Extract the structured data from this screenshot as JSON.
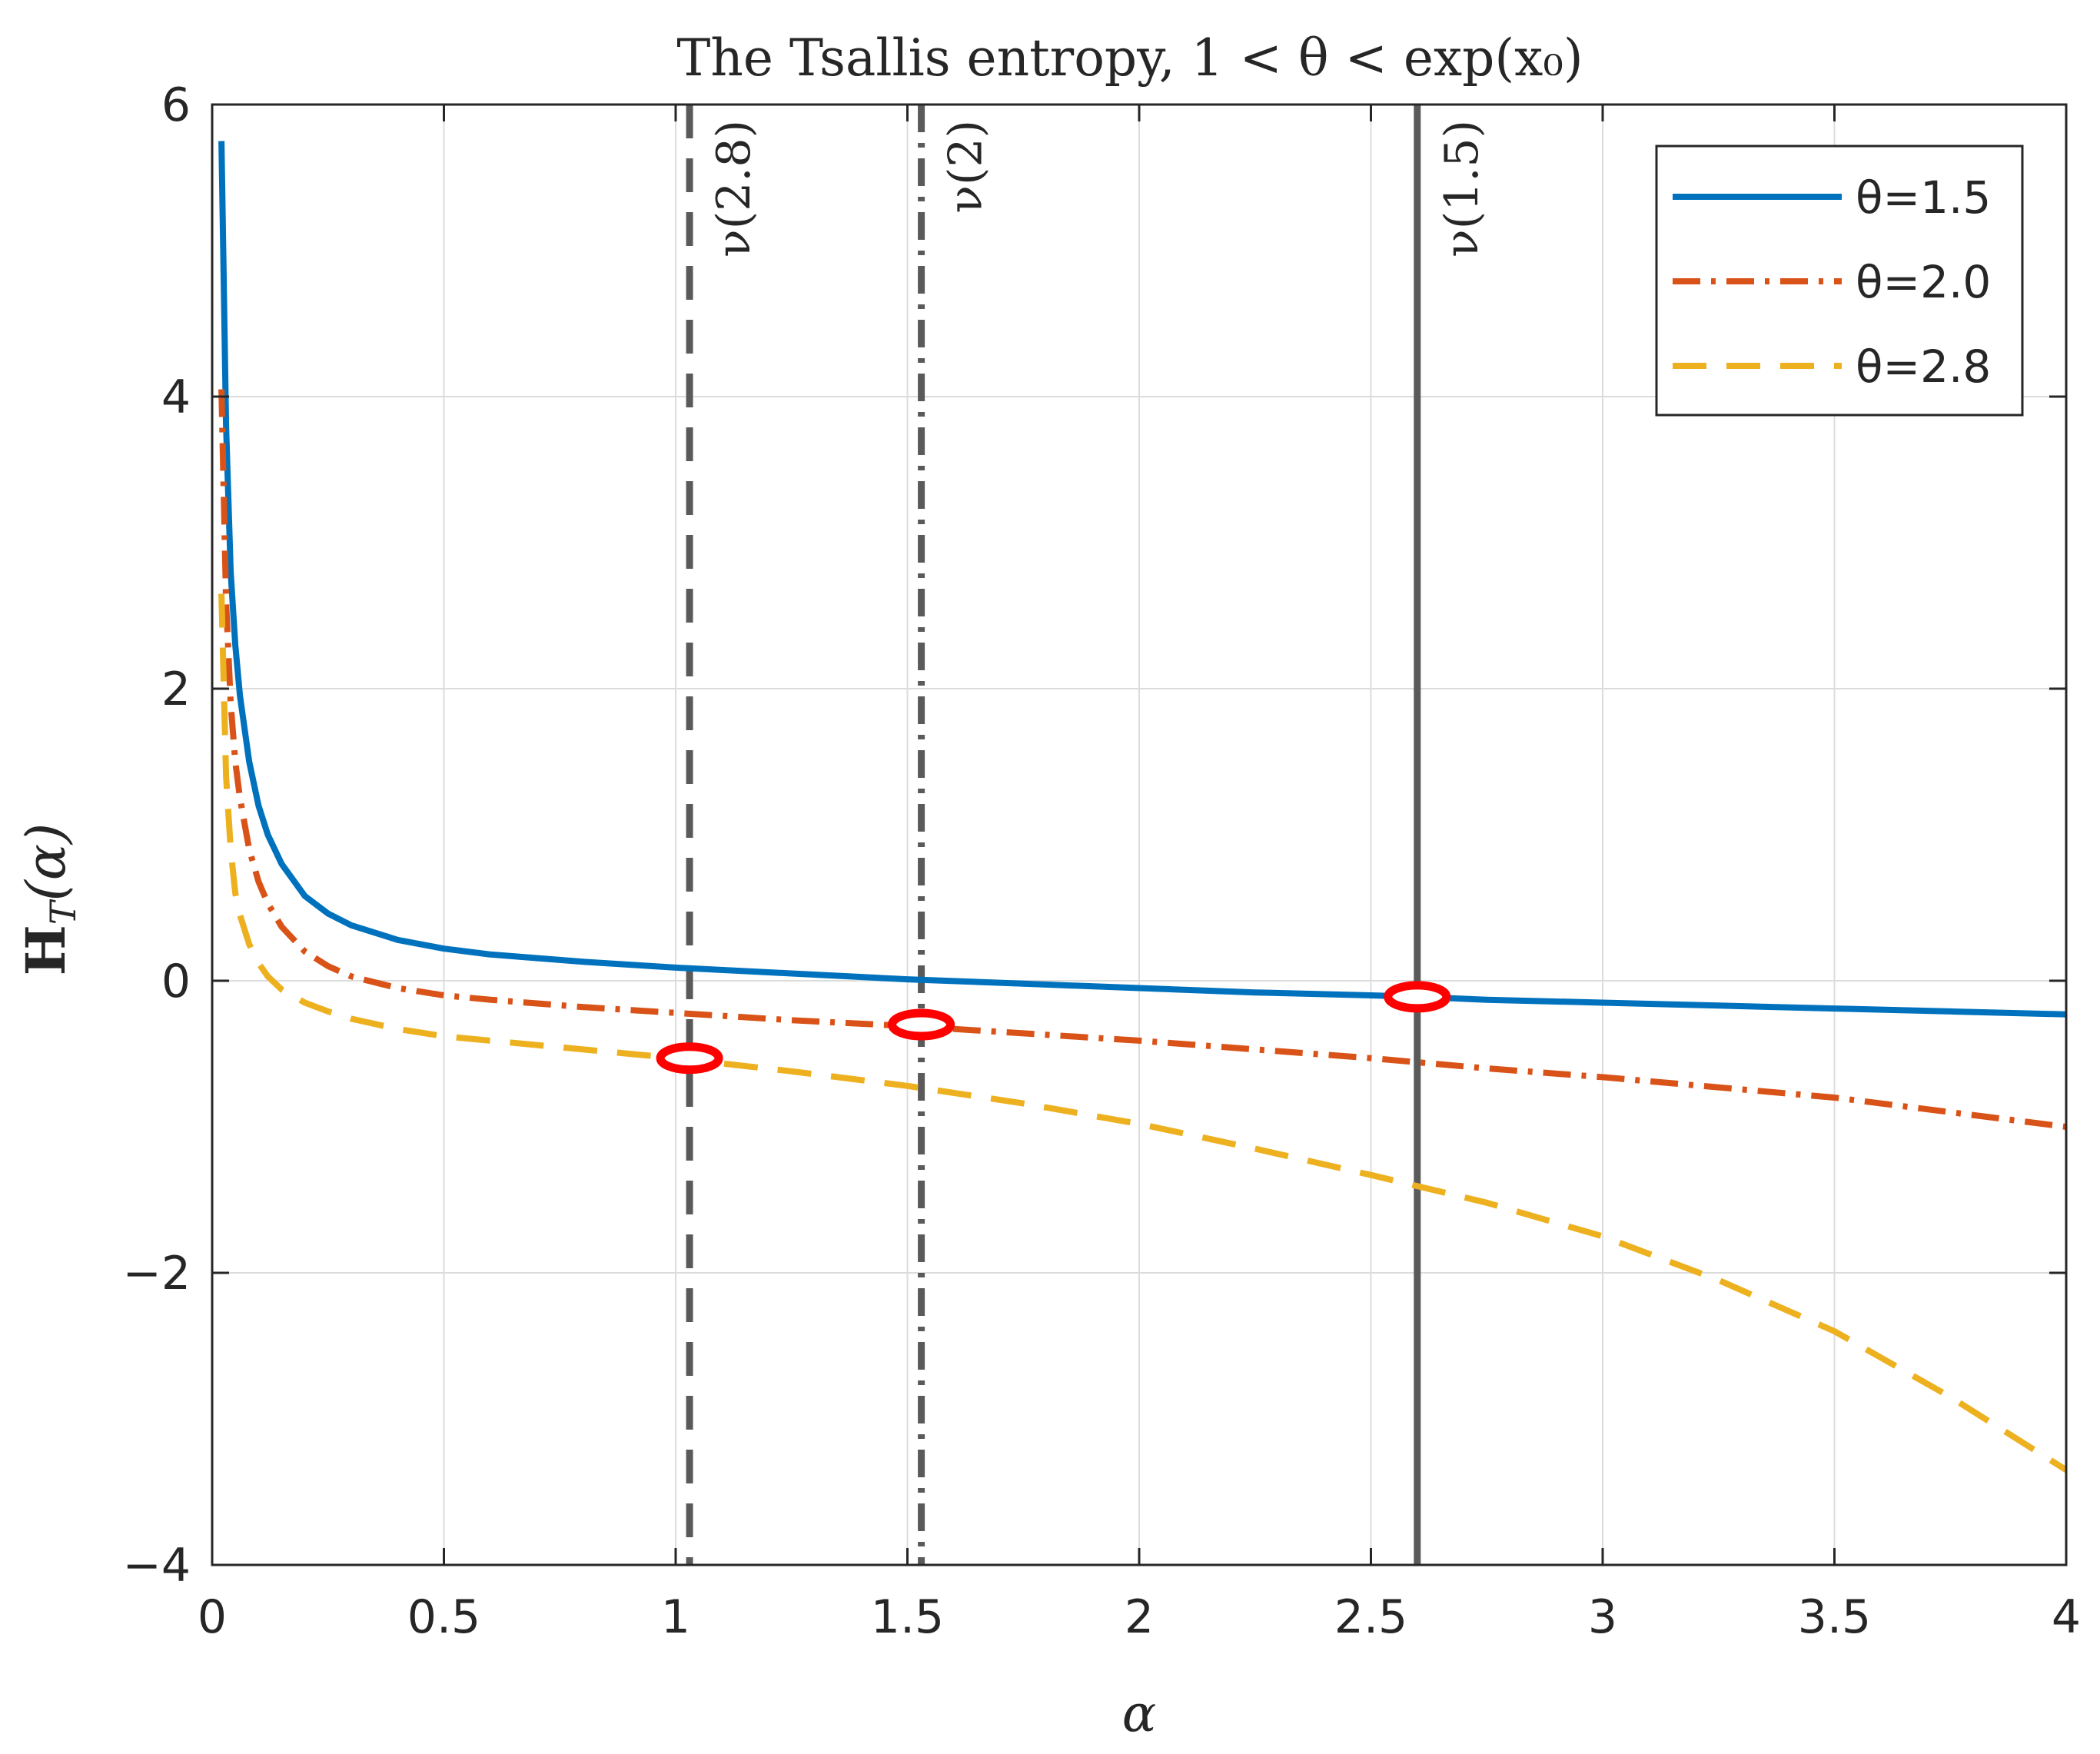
{
  "chart_data": {
    "type": "line",
    "title": "The Tsallis entropy, 1 < θ < exp(x₀)",
    "xlabel": "α",
    "ylabel": "H_T(α)",
    "ylabel_main": "H",
    "ylabel_sub": "T",
    "ylabel_arg": "(α)",
    "xlim": [
      0,
      4
    ],
    "ylim": [
      -4,
      6
    ],
    "xticks": [
      0,
      0.5,
      1,
      1.5,
      2,
      2.5,
      3,
      3.5,
      4
    ],
    "xtick_labels": [
      "0",
      "0.5",
      "1",
      "1.5",
      "2",
      "2.5",
      "3",
      "3.5",
      "4"
    ],
    "yticks": [
      -4,
      -2,
      0,
      2,
      4,
      6
    ],
    "ytick_labels": [
      "−4",
      "−2",
      "0",
      "2",
      "4",
      "6"
    ],
    "grid": true,
    "legend_position": "top-right",
    "series": [
      {
        "name": "θ=1.5",
        "color": "#0072BD",
        "style": "solid",
        "x": [
          0.02,
          0.03,
          0.04,
          0.05,
          0.06,
          0.08,
          0.1,
          0.12,
          0.15,
          0.2,
          0.25,
          0.3,
          0.4,
          0.5,
          0.6,
          0.8,
          1.0,
          1.25,
          1.5,
          1.75,
          2.0,
          2.25,
          2.5,
          2.6,
          2.75,
          3.0,
          3.25,
          3.5,
          3.75,
          4.0
        ],
        "y": [
          5.75,
          3.8,
          2.8,
          2.3,
          1.95,
          1.5,
          1.2,
          1.0,
          0.8,
          0.58,
          0.46,
          0.38,
          0.28,
          0.22,
          0.18,
          0.13,
          0.09,
          0.05,
          0.01,
          -0.02,
          -0.05,
          -0.08,
          -0.1,
          -0.11,
          -0.13,
          -0.15,
          -0.17,
          -0.19,
          -0.21,
          -0.23
        ]
      },
      {
        "name": "θ=2.0",
        "color": "#D95319",
        "style": "dashdot",
        "x": [
          0.02,
          0.03,
          0.04,
          0.05,
          0.06,
          0.08,
          0.1,
          0.12,
          0.15,
          0.2,
          0.25,
          0.3,
          0.4,
          0.5,
          0.6,
          0.8,
          1.0,
          1.25,
          1.5,
          1.75,
          2.0,
          2.25,
          2.5,
          2.75,
          3.0,
          3.25,
          3.5,
          3.75,
          4.0
        ],
        "y": [
          4.05,
          2.6,
          1.9,
          1.5,
          1.25,
          0.9,
          0.68,
          0.53,
          0.37,
          0.2,
          0.1,
          0.03,
          -0.05,
          -0.1,
          -0.13,
          -0.18,
          -0.22,
          -0.27,
          -0.31,
          -0.36,
          -0.41,
          -0.47,
          -0.53,
          -0.6,
          -0.66,
          -0.73,
          -0.8,
          -0.9,
          -1.0
        ]
      },
      {
        "name": "θ=2.8",
        "color": "#EDB120",
        "style": "dashed",
        "x": [
          0.02,
          0.03,
          0.04,
          0.05,
          0.06,
          0.08,
          0.1,
          0.12,
          0.15,
          0.2,
          0.25,
          0.3,
          0.4,
          0.5,
          0.6,
          0.8,
          1.0,
          1.25,
          1.5,
          1.75,
          2.0,
          2.25,
          2.5,
          2.75,
          3.0,
          3.25,
          3.5,
          3.75,
          4.0
        ],
        "y": [
          2.65,
          1.4,
          0.9,
          0.6,
          0.45,
          0.25,
          0.12,
          0.03,
          -0.06,
          -0.15,
          -0.21,
          -0.26,
          -0.33,
          -0.38,
          -0.41,
          -0.47,
          -0.53,
          -0.62,
          -0.72,
          -0.84,
          -0.98,
          -1.15,
          -1.33,
          -1.52,
          -1.75,
          -2.05,
          -2.4,
          -2.85,
          -3.35
        ]
      }
    ],
    "vertical_lines": [
      {
        "x": 1.03,
        "label": "ν(2.8)",
        "style": "dashed",
        "color": "#5a5a5a"
      },
      {
        "x": 1.53,
        "label": "ν(2)",
        "style": "dashdot",
        "color": "#5a5a5a"
      },
      {
        "x": 2.6,
        "label": "ν(1.5)",
        "style": "solid",
        "color": "#5a5a5a"
      }
    ],
    "markers": [
      {
        "x": 1.03,
        "y": -0.53,
        "color": "#ff0000"
      },
      {
        "x": 1.53,
        "y": -0.3,
        "color": "#ff0000"
      },
      {
        "x": 2.6,
        "y": -0.11,
        "color": "#ff0000"
      }
    ]
  }
}
